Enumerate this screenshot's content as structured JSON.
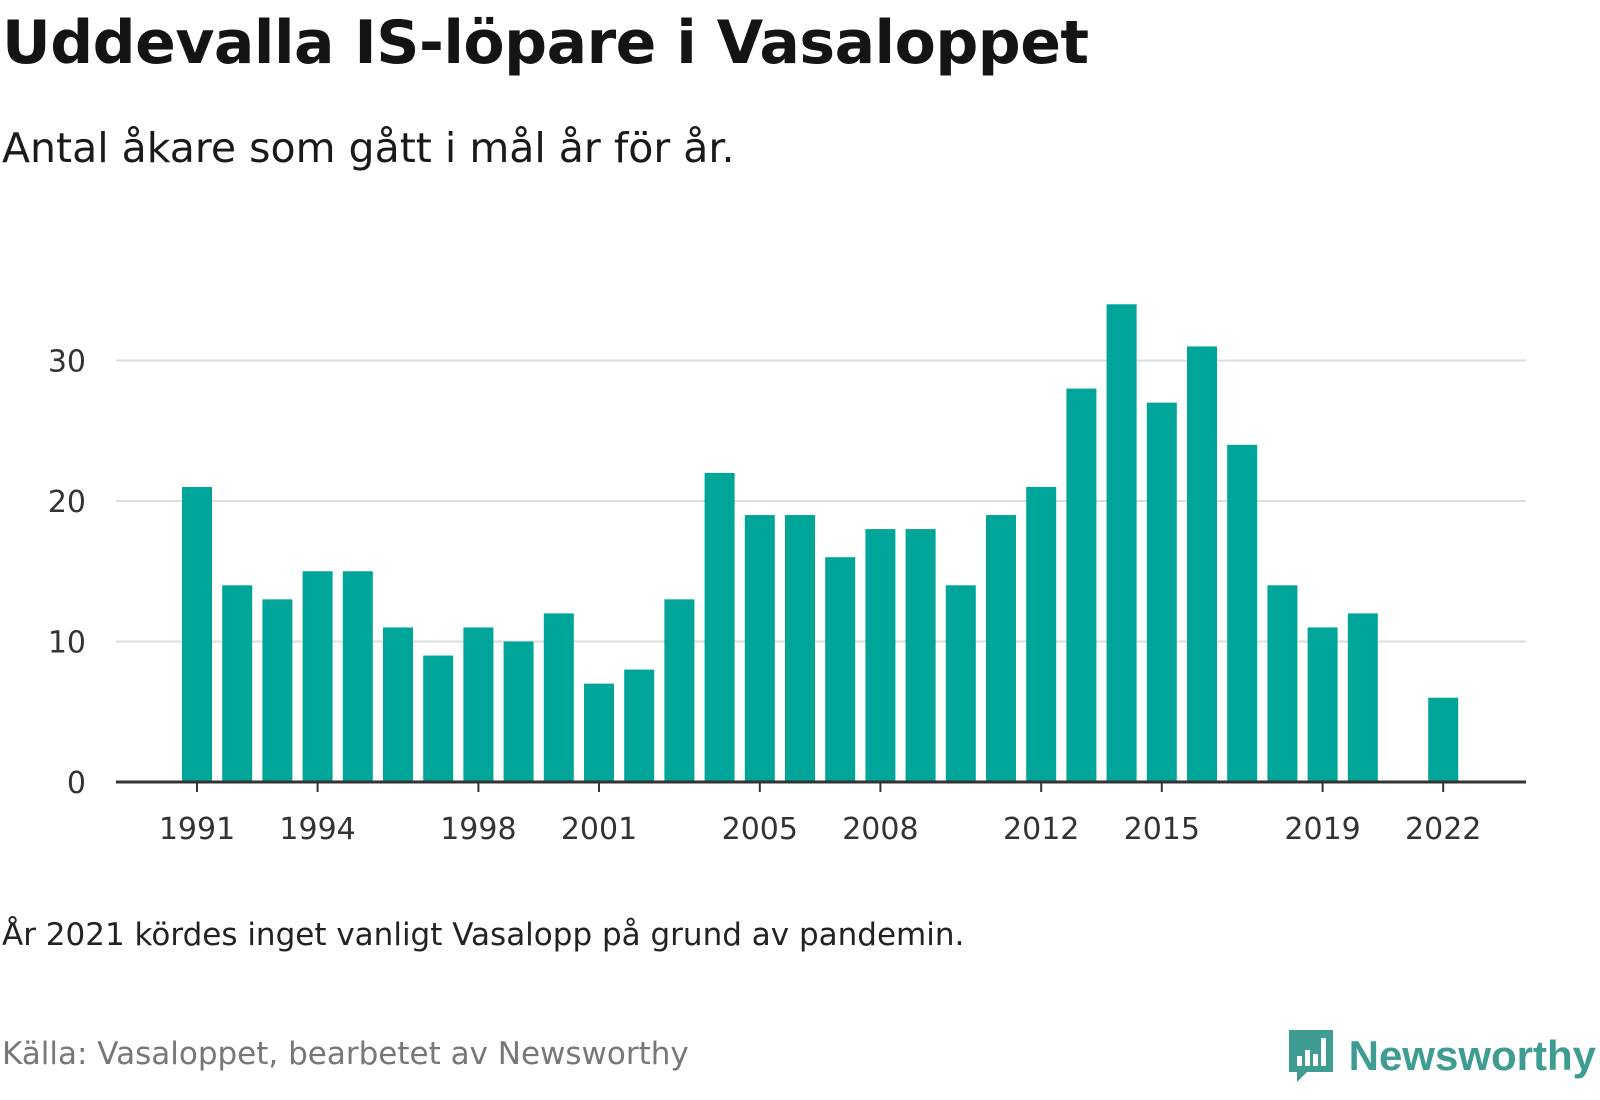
{
  "header": {
    "title": "Uddevalla IS-löpare i Vasaloppet",
    "subtitle": "Antal åkare som gått i mål år för år."
  },
  "footer": {
    "note": "År 2021 kördes inget vanligt Vasalopp på grund av pandemin.",
    "source": "Källa: Vasaloppet, bearbetet av Newsworthy",
    "brand": "Newsworthy",
    "brand_icon": "newsworthy-logo-icon"
  },
  "colors": {
    "bar": "#00a59a",
    "grid": "#dddddd",
    "axis": "#333333",
    "brand": "#3f9c92"
  },
  "chart_data": {
    "type": "bar",
    "categories": [
      "1991",
      "1992",
      "1993",
      "1994",
      "1995",
      "1996",
      "1997",
      "1998",
      "1999",
      "2000",
      "2001",
      "2002",
      "2003",
      "2004",
      "2005",
      "2006",
      "2007",
      "2008",
      "2009",
      "2010",
      "2011",
      "2012",
      "2013",
      "2014",
      "2015",
      "2016",
      "2017",
      "2018",
      "2019",
      "2020",
      "2021",
      "2022"
    ],
    "values": [
      21,
      14,
      13,
      15,
      15,
      11,
      9,
      11,
      10,
      12,
      7,
      8,
      13,
      22,
      19,
      19,
      16,
      18,
      18,
      14,
      19,
      21,
      28,
      34,
      27,
      31,
      24,
      14,
      11,
      12,
      null,
      6
    ],
    "x_tick_labels": [
      "1991",
      "1994",
      "1998",
      "2001",
      "2005",
      "2008",
      "2012",
      "2015",
      "2019",
      "2022"
    ],
    "y_ticks": [
      0,
      10,
      20,
      30
    ],
    "ylim": [
      0,
      35
    ],
    "grid": true,
    "legend": "none"
  }
}
